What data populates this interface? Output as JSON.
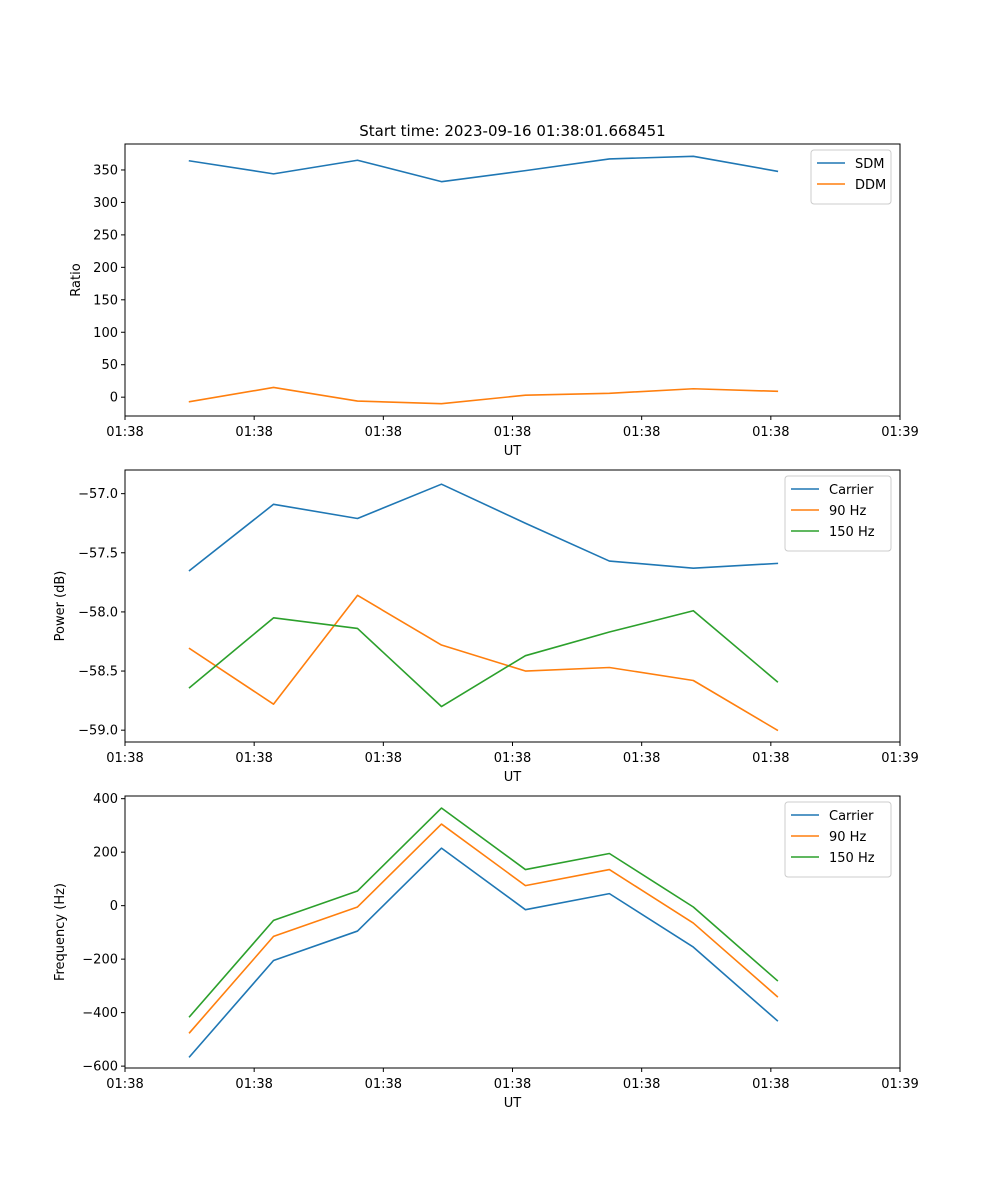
{
  "figure": {
    "title": "Start time: 2023-09-16 01:38:01.668451"
  },
  "chart_data": [
    {
      "type": "line",
      "title": "Start time: 2023-09-16 01:38:01.668451",
      "xlabel": "UT",
      "ylabel": "Ratio",
      "x": [
        0.5,
        1.15,
        1.8,
        2.45,
        3.1,
        3.75,
        4.4,
        5.05
      ],
      "xlim": [
        0,
        6
      ],
      "xticks": [
        0,
        1,
        2,
        3,
        4,
        5,
        6
      ],
      "xtick_labels": [
        "01:38",
        "01:38",
        "01:38",
        "01:38",
        "01:38",
        "01:38",
        "01:39"
      ],
      "ylim": [
        -29,
        390
      ],
      "yticks": [
        0,
        50,
        100,
        150,
        200,
        250,
        300,
        350
      ],
      "ytick_labels": [
        "0",
        "50",
        "100",
        "150",
        "200",
        "250",
        "300",
        "350"
      ],
      "legend_position": "top-right",
      "series": [
        {
          "name": "SDM",
          "color": "#1f77b4",
          "values": [
            364,
            344,
            365,
            332,
            349,
            367,
            371,
            348
          ]
        },
        {
          "name": "DDM",
          "color": "#ff7f0e",
          "values": [
            -7,
            15,
            -6,
            -10,
            3,
            6,
            13,
            9
          ]
        }
      ]
    },
    {
      "type": "line",
      "xlabel": "UT",
      "ylabel": "Power (dB)",
      "x": [
        0.5,
        1.15,
        1.8,
        2.45,
        3.1,
        3.75,
        4.4,
        5.05
      ],
      "xlim": [
        0,
        6
      ],
      "xticks": [
        0,
        1,
        2,
        3,
        4,
        5,
        6
      ],
      "xtick_labels": [
        "01:38",
        "01:38",
        "01:38",
        "01:38",
        "01:38",
        "01:38",
        "01:39"
      ],
      "ylim": [
        -59.1,
        -56.8
      ],
      "yticks": [
        -59.0,
        -58.5,
        -58.0,
        -57.5,
        -57.0
      ],
      "ytick_labels": [
        "−59.0",
        "−58.5",
        "−58.0",
        "−57.5",
        "−57.0"
      ],
      "legend_position": "top-right",
      "series": [
        {
          "name": "Carrier",
          "color": "#1f77b4",
          "values": [
            -57.65,
            -57.09,
            -57.21,
            -56.92,
            -57.25,
            -57.57,
            -57.63,
            -57.59
          ]
        },
        {
          "name": "90 Hz",
          "color": "#ff7f0e",
          "values": [
            -58.31,
            -58.78,
            -57.86,
            -58.28,
            -58.5,
            -58.47,
            -58.58,
            -59.0
          ]
        },
        {
          "name": "150 Hz",
          "color": "#2ca02c",
          "values": [
            -58.64,
            -58.05,
            -58.14,
            -58.8,
            -58.37,
            -58.17,
            -57.99,
            -58.59
          ]
        }
      ]
    },
    {
      "type": "line",
      "xlabel": "UT",
      "ylabel": "Frequency (Hz)",
      "x": [
        0.5,
        1.15,
        1.8,
        2.45,
        3.1,
        3.75,
        4.4,
        5.05
      ],
      "xlim": [
        0,
        6
      ],
      "xticks": [
        0,
        1,
        2,
        3,
        4,
        5,
        6
      ],
      "xtick_labels": [
        "01:38",
        "01:38",
        "01:38",
        "01:38",
        "01:38",
        "01:38",
        "01:39"
      ],
      "ylim": [
        -607,
        410
      ],
      "yticks": [
        -600,
        -400,
        -200,
        0,
        200,
        400
      ],
      "ytick_labels": [
        "−600",
        "−400",
        "−200",
        "0",
        "200",
        "400"
      ],
      "legend_position": "top-right",
      "series": [
        {
          "name": "Carrier",
          "color": "#1f77b4",
          "values": [
            -565,
            -205,
            -95,
            215,
            -15,
            45,
            -155,
            -430
          ]
        },
        {
          "name": "90 Hz",
          "color": "#ff7f0e",
          "values": [
            -475,
            -115,
            -5,
            305,
            75,
            135,
            -65,
            -340
          ]
        },
        {
          "name": "150 Hz",
          "color": "#2ca02c",
          "values": [
            -415,
            -55,
            55,
            365,
            135,
            195,
            -5,
            -280
          ]
        }
      ]
    }
  ]
}
